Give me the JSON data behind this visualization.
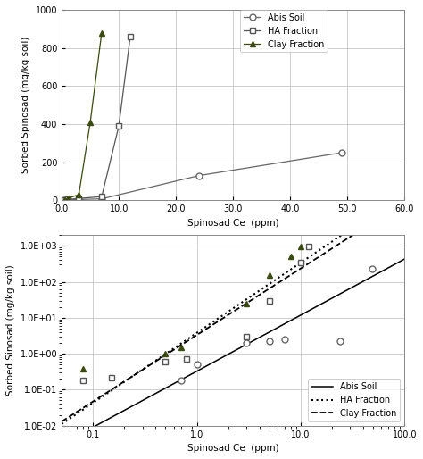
{
  "upper": {
    "abis_soil_x": [
      0.5,
      1.0,
      3.0,
      7.0,
      24.0,
      49.0
    ],
    "abis_soil_y": [
      1.0,
      2.0,
      5.0,
      8.0,
      130.0,
      250.0
    ],
    "ha_fraction_x": [
      0.5,
      1.0,
      3.0,
      7.0,
      10.0,
      12.0
    ],
    "ha_fraction_y": [
      1.0,
      5.0,
      10.0,
      20.0,
      390.0,
      860.0
    ],
    "clay_fraction_x": [
      0.5,
      1.0,
      3.0,
      5.0,
      7.0
    ],
    "clay_fraction_y": [
      2.0,
      10.0,
      30.0,
      410.0,
      880.0
    ],
    "xlabel": "Spinosad Ce  (ppm)",
    "ylabel": "Sorbed Spinosad (mg/kg soil)",
    "xlim": [
      0.0,
      60.0
    ],
    "ylim": [
      0,
      1000
    ],
    "xticks": [
      0.0,
      10.0,
      20.0,
      30.0,
      40.0,
      50.0,
      60.0
    ],
    "yticks": [
      0,
      200,
      400,
      600,
      800,
      1000
    ]
  },
  "lower": {
    "abis_soil_x": [
      0.7,
      1.0,
      3.0,
      5.0,
      7.0,
      24.0,
      49.0
    ],
    "abis_soil_y": [
      0.18,
      0.5,
      2.0,
      2.2,
      2.5,
      2.3,
      230.0
    ],
    "ha_fraction_x": [
      0.08,
      0.15,
      0.5,
      0.8,
      3.0,
      5.0,
      10.0,
      12.0
    ],
    "ha_fraction_y": [
      0.18,
      0.22,
      0.6,
      0.7,
      3.0,
      30.0,
      350.0,
      980.0
    ],
    "clay_fraction_x": [
      0.08,
      0.5,
      0.7,
      3.0,
      5.0,
      8.0,
      10.0
    ],
    "clay_fraction_y": [
      0.38,
      1.0,
      1.5,
      25.0,
      150.0,
      500.0,
      980.0
    ],
    "xlabel": "Spinosad Ce  (ppm)",
    "ylabel": "Sorbed Sinosad (mg/kg soil)",
    "xlim_log": [
      0.05,
      100.0
    ],
    "ylim_log": [
      0.01,
      2000.0
    ],
    "fit_abis_slope": 1.56,
    "fit_abis_intercept": -0.487,
    "fit_ha_slope": 1.95,
    "fit_ha_intercept": 0.58,
    "fit_clay_slope": 1.85,
    "fit_clay_intercept": 0.52
  },
  "color_abis": "#666666",
  "color_ha": "#555555",
  "color_clay": "#3a4a10",
  "color_line": "#000000"
}
